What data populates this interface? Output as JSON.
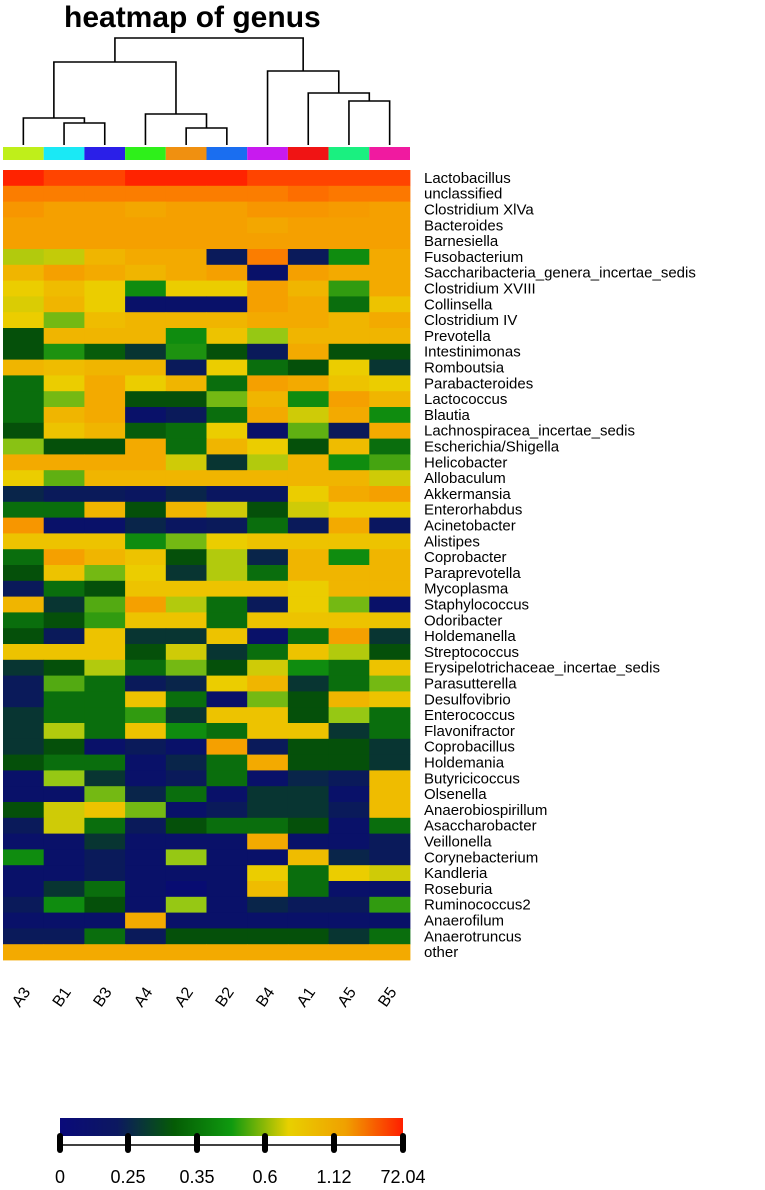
{
  "chart_data": {
    "type": "heatmap",
    "title": "heatmap of genus",
    "columns": [
      "A3",
      "B1",
      "B3",
      "A4",
      "A2",
      "B2",
      "B4",
      "A1",
      "A5",
      "B5"
    ],
    "column_colors": [
      "#bfef1a",
      "#1ae9f5",
      "#2a1fe8",
      "#2ef01a",
      "#f09010",
      "#1a6ef0",
      "#c81aef",
      "#f01414",
      "#1af080",
      "#f01aa0"
    ],
    "rows": [
      "Lactobacillus",
      "unclassified",
      "Clostridium XlVa",
      "Bacteroides",
      "Barnesiella",
      "Fusobacterium",
      "Saccharibacteria_genera_incertae_sedis",
      "Clostridium XVIII",
      "Collinsella",
      "Clostridium IV",
      "Prevotella",
      "Intestinimonas",
      "Romboutsia",
      "Parabacteroides",
      "Lactococcus",
      "Blautia",
      "Lachnospiracea_incertae_sedis",
      "Escherichia/Shigella",
      "Helicobacter",
      "Allobaculum",
      "Akkermansia",
      "Enterorhabdus",
      "Acinetobacter",
      "Alistipes",
      "Coprobacter",
      "Paraprevotella",
      "Mycoplasma",
      "Staphylococcus",
      "Odoribacter",
      "Holdemanella",
      "Streptococcus",
      "Erysipelotrichaceae_incertae_sedis",
      "Parasutterella",
      "Desulfovibrio",
      "Enterococcus",
      "Flavonifractor",
      "Coprobacillus",
      "Holdemania",
      "Butyricicoccus",
      "Olsenella",
      "Anaerobiospirillum",
      "Asaccharobacter",
      "Veillonella",
      "Corynebacterium",
      "Kandleria",
      "Roseburia",
      "Ruminococcus2",
      "Anaerofilum",
      "Anaerotruncus",
      "other"
    ],
    "levels": [
      [
        10,
        9.5,
        9.5,
        10,
        10,
        10,
        9.5,
        9.5,
        9.5,
        9.5
      ],
      [
        8.5,
        8.5,
        8.5,
        8.5,
        8.5,
        8.5,
        8.5,
        8.8,
        8.6,
        8.6
      ],
      [
        8,
        7.8,
        7.8,
        7.6,
        7.8,
        7.8,
        8,
        8,
        7.9,
        7.8
      ],
      [
        7.8,
        7.8,
        7.8,
        7.8,
        7.8,
        7.8,
        7.6,
        7.8,
        7.8,
        7.8
      ],
      [
        7.8,
        7.8,
        7.8,
        7.8,
        7.8,
        7.8,
        7.8,
        7.8,
        7.8,
        7.8
      ],
      [
        5.5,
        5.8,
        7.2,
        7.5,
        7.5,
        1,
        8.5,
        1,
        3,
        7.5
      ],
      [
        7.2,
        7.8,
        7.5,
        7.2,
        7.5,
        7.8,
        0.5,
        7.8,
        7.5,
        7.5
      ],
      [
        6.5,
        7,
        6.5,
        3,
        6.5,
        6.5,
        7.8,
        7.2,
        3.5,
        7.5
      ],
      [
        6.2,
        7.2,
        6.5,
        0.5,
        0.5,
        0.5,
        7.8,
        7.5,
        2.5,
        6.8
      ],
      [
        6.5,
        4.5,
        7,
        7.2,
        7.2,
        7.2,
        7.5,
        7.5,
        7.2,
        7.5
      ],
      [
        2,
        7.2,
        7.2,
        7.2,
        3,
        6.8,
        5,
        7.2,
        7.2,
        7.2
      ],
      [
        2,
        3.2,
        2.2,
        1.5,
        3.2,
        2,
        1,
        7.5,
        2,
        2
      ],
      [
        7.2,
        7,
        7.2,
        7.2,
        1,
        6.5,
        2.5,
        2,
        6.5,
        1.5
      ],
      [
        2.5,
        6.5,
        7.5,
        6.5,
        7.2,
        2.5,
        7.8,
        7.5,
        6.8,
        6.5
      ],
      [
        2.5,
        4.5,
        7.5,
        2,
        2,
        4.5,
        7.2,
        3,
        7.8,
        7.2
      ],
      [
        2.5,
        7.2,
        7.5,
        0.5,
        1,
        2.5,
        7.5,
        6,
        7.5,
        3
      ],
      [
        2,
        6.8,
        7.2,
        2.2,
        2.5,
        6.5,
        0.5,
        4.2,
        1,
        7.5
      ],
      [
        4.8,
        2,
        2,
        7.5,
        2.5,
        7.2,
        6.5,
        2,
        7,
        2.5
      ],
      [
        7.5,
        7.5,
        7.5,
        7.5,
        6,
        1.5,
        5.5,
        7.2,
        3,
        3.8
      ],
      [
        6.5,
        4.2,
        7.2,
        7.2,
        7.2,
        7.2,
        7.2,
        7.2,
        7.2,
        6
      ],
      [
        1.2,
        1,
        1,
        0.8,
        1.2,
        0.8,
        0.8,
        6.5,
        7.5,
        7.8
      ],
      [
        2.5,
        2.5,
        7.2,
        2,
        7.2,
        6,
        2,
        6,
        6.5,
        6.5
      ],
      [
        8,
        0.5,
        0.5,
        1.2,
        0.8,
        1,
        2.5,
        1,
        7.5,
        0.8
      ],
      [
        6.8,
        6.8,
        6.8,
        3,
        4.5,
        6.5,
        6.8,
        6.8,
        6.8,
        6.8
      ],
      [
        2.5,
        7.8,
        7.2,
        6.8,
        2,
        5.5,
        1.2,
        7.2,
        3,
        7.2
      ],
      [
        2,
        6.8,
        4.5,
        6.5,
        1.5,
        5.5,
        2.5,
        7.2,
        7.2,
        7.2
      ],
      [
        1,
        2.5,
        2,
        6.8,
        6.8,
        6.8,
        6.8,
        6.5,
        7.2,
        7.2
      ],
      [
        7.2,
        1.5,
        4,
        7.8,
        5.5,
        2.5,
        1,
        6.5,
        4.5,
        0.5
      ],
      [
        2.5,
        2,
        3.5,
        6.8,
        6.8,
        2.5,
        6.8,
        6.8,
        6.8,
        6.8
      ],
      [
        2,
        1,
        6.8,
        1.5,
        1.5,
        6.8,
        0.5,
        2.5,
        7.8,
        1.5
      ],
      [
        6.8,
        6.8,
        6.8,
        2,
        6,
        1.5,
        2.5,
        6.8,
        5.5,
        2
      ],
      [
        1.5,
        2,
        5.5,
        2.5,
        4.5,
        2,
        6,
        3,
        2.5,
        6.8
      ],
      [
        1,
        4,
        2.5,
        1,
        1.2,
        6.5,
        7.2,
        1.5,
        2.5,
        4.5
      ],
      [
        1,
        2.5,
        2.5,
        6.8,
        2.5,
        0.5,
        4.5,
        2,
        7.2,
        6.8
      ],
      [
        1.5,
        2.5,
        2.5,
        3.5,
        1.5,
        6.8,
        6.8,
        2,
        5,
        2.5
      ],
      [
        1.5,
        5.5,
        2.5,
        6.8,
        3,
        2.5,
        6.8,
        6.8,
        1.5,
        2.5
      ],
      [
        1.5,
        2,
        0.5,
        1,
        0.5,
        7.8,
        1,
        2,
        2,
        1.5
      ],
      [
        2,
        2.5,
        2.5,
        0.5,
        1.2,
        2.5,
        7.5,
        2,
        2,
        1.5
      ],
      [
        0.5,
        5,
        1.5,
        0.5,
        1,
        2.5,
        0.5,
        1.2,
        1,
        7
      ],
      [
        0.5,
        0.5,
        4.5,
        1.2,
        2.5,
        0.5,
        1.5,
        1.5,
        0.5,
        7
      ],
      [
        2,
        6,
        6.8,
        4.5,
        0.5,
        1,
        1.5,
        1.5,
        1,
        7
      ],
      [
        1,
        6,
        2.5,
        1,
        2,
        2.5,
        2.5,
        2,
        0.5,
        2.5
      ],
      [
        0.5,
        0.5,
        1.5,
        0.5,
        0.5,
        0.5,
        7.5,
        0.5,
        0.5,
        1
      ],
      [
        3,
        0.5,
        1,
        0.5,
        5,
        0.5,
        0.5,
        7,
        1.2,
        1
      ],
      [
        0.5,
        0.5,
        1,
        0.5,
        0.5,
        0.5,
        6.5,
        2.5,
        6.5,
        6
      ],
      [
        0.5,
        1.5,
        2.5,
        0.5,
        0.2,
        0.5,
        7,
        2.5,
        0.5,
        0.5
      ],
      [
        1,
        3,
        2,
        0.5,
        5,
        0.5,
        1.2,
        1,
        1,
        3.5
      ],
      [
        0.5,
        0.5,
        0.5,
        7.5,
        0.5,
        0.5,
        0.5,
        0.5,
        0.5,
        0.5
      ],
      [
        1,
        1,
        2.5,
        1,
        2,
        2,
        2,
        2,
        1.5,
        2.5
      ],
      [
        7.5,
        7.5,
        7.5,
        7.5,
        7.5,
        7.5,
        7.5,
        7.5,
        7.5,
        7.5
      ]
    ],
    "dendrogram_order": [
      "A3",
      "B1",
      "B3",
      "A4",
      "A2",
      "B2",
      "B4",
      "A1",
      "A5",
      "B5"
    ],
    "legend": {
      "tick_labels": [
        "0",
        "0.25",
        "0.35",
        "0.6",
        "1.12",
        "72.04"
      ],
      "colors": [
        "#0a0a7a",
        "#0c1860",
        "#055c05",
        "#0f9a0f",
        "#e8d000",
        "#f0a000",
        "#ff1e00"
      ]
    },
    "xlabel": "",
    "ylabel": "",
    "grid": false
  }
}
